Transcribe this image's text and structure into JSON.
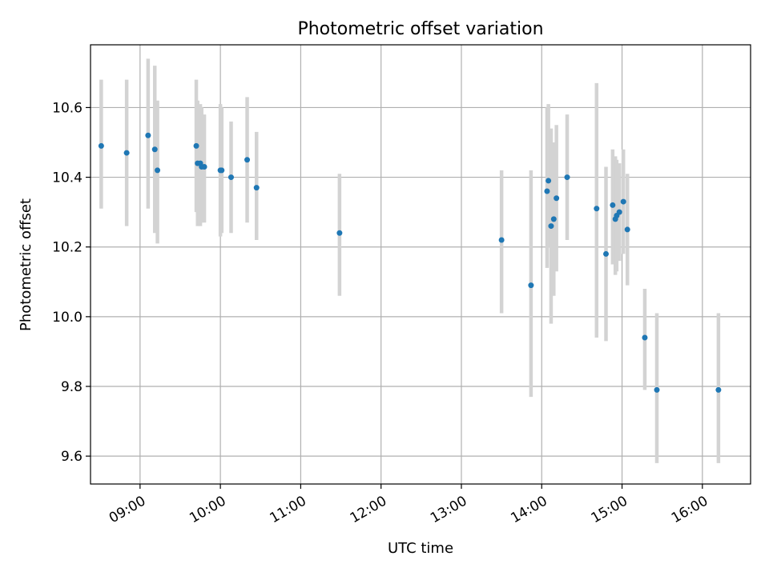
{
  "chart_data": {
    "type": "scatter",
    "title": "Photometric offset variation",
    "xlabel": "UTC time",
    "ylabel": "Photometric offset",
    "grid": true,
    "xlim": [
      "08:23",
      "16:36"
    ],
    "ylim": [
      9.52,
      10.78
    ],
    "xticks": [
      "09:00",
      "10:00",
      "11:00",
      "12:00",
      "13:00",
      "14:00",
      "15:00",
      "16:00"
    ],
    "yticks": [
      "9.6",
      "9.8",
      "10.0",
      "10.2",
      "10.4",
      "10.6"
    ],
    "point_color": "#1f77b4",
    "errorbar_color": "#d3d3d3",
    "points": [
      {
        "x": "08:31",
        "y": 10.49,
        "lo": 10.31,
        "hi": 10.68
      },
      {
        "x": "08:50",
        "y": 10.47,
        "lo": 10.26,
        "hi": 10.68
      },
      {
        "x": "09:06",
        "y": 10.52,
        "lo": 10.31,
        "hi": 10.74
      },
      {
        "x": "09:11",
        "y": 10.48,
        "lo": 10.24,
        "hi": 10.72
      },
      {
        "x": "09:13",
        "y": 10.42,
        "lo": 10.21,
        "hi": 10.62
      },
      {
        "x": "09:42",
        "y": 10.49,
        "lo": 10.3,
        "hi": 10.68
      },
      {
        "x": "09:43",
        "y": 10.44,
        "lo": 10.26,
        "hi": 10.62
      },
      {
        "x": "09:45",
        "y": 10.44,
        "lo": 10.26,
        "hi": 10.61
      },
      {
        "x": "09:46",
        "y": 10.43,
        "lo": 10.27,
        "hi": 10.6
      },
      {
        "x": "09:48",
        "y": 10.43,
        "lo": 10.27,
        "hi": 10.58
      },
      {
        "x": "10:00",
        "y": 10.42,
        "lo": 10.23,
        "hi": 10.61
      },
      {
        "x": "10:01",
        "y": 10.42,
        "lo": 10.24,
        "hi": 10.6
      },
      {
        "x": "10:08",
        "y": 10.4,
        "lo": 10.24,
        "hi": 10.56
      },
      {
        "x": "10:20",
        "y": 10.45,
        "lo": 10.27,
        "hi": 10.63
      },
      {
        "x": "10:27",
        "y": 10.37,
        "lo": 10.22,
        "hi": 10.53
      },
      {
        "x": "11:29",
        "y": 10.24,
        "lo": 10.06,
        "hi": 10.41
      },
      {
        "x": "13:30",
        "y": 10.22,
        "lo": 10.01,
        "hi": 10.42
      },
      {
        "x": "13:52",
        "y": 10.09,
        "lo": 9.77,
        "hi": 10.42
      },
      {
        "x": "14:04",
        "y": 10.36,
        "lo": 10.14,
        "hi": 10.6
      },
      {
        "x": "14:05",
        "y": 10.39,
        "lo": 10.2,
        "hi": 10.61
      },
      {
        "x": "14:07",
        "y": 10.26,
        "lo": 9.98,
        "hi": 10.54
      },
      {
        "x": "14:09",
        "y": 10.28,
        "lo": 10.06,
        "hi": 10.5
      },
      {
        "x": "14:11",
        "y": 10.34,
        "lo": 10.13,
        "hi": 10.55
      },
      {
        "x": "14:19",
        "y": 10.4,
        "lo": 10.22,
        "hi": 10.58
      },
      {
        "x": "14:41",
        "y": 10.31,
        "lo": 9.94,
        "hi": 10.67
      },
      {
        "x": "14:48",
        "y": 10.18,
        "lo": 9.93,
        "hi": 10.43
      },
      {
        "x": "14:53",
        "y": 10.32,
        "lo": 10.15,
        "hi": 10.48
      },
      {
        "x": "14:55",
        "y": 10.28,
        "lo": 10.12,
        "hi": 10.46
      },
      {
        "x": "14:56",
        "y": 10.29,
        "lo": 10.13,
        "hi": 10.45
      },
      {
        "x": "14:58",
        "y": 10.3,
        "lo": 10.16,
        "hi": 10.44
      },
      {
        "x": "15:01",
        "y": 10.33,
        "lo": 10.18,
        "hi": 10.48
      },
      {
        "x": "15:04",
        "y": 10.25,
        "lo": 10.09,
        "hi": 10.41
      },
      {
        "x": "15:17",
        "y": 9.94,
        "lo": 9.79,
        "hi": 10.08
      },
      {
        "x": "15:26",
        "y": 9.79,
        "lo": 9.58,
        "hi": 10.01
      },
      {
        "x": "16:12",
        "y": 9.79,
        "lo": 9.58,
        "hi": 10.01
      }
    ]
  }
}
